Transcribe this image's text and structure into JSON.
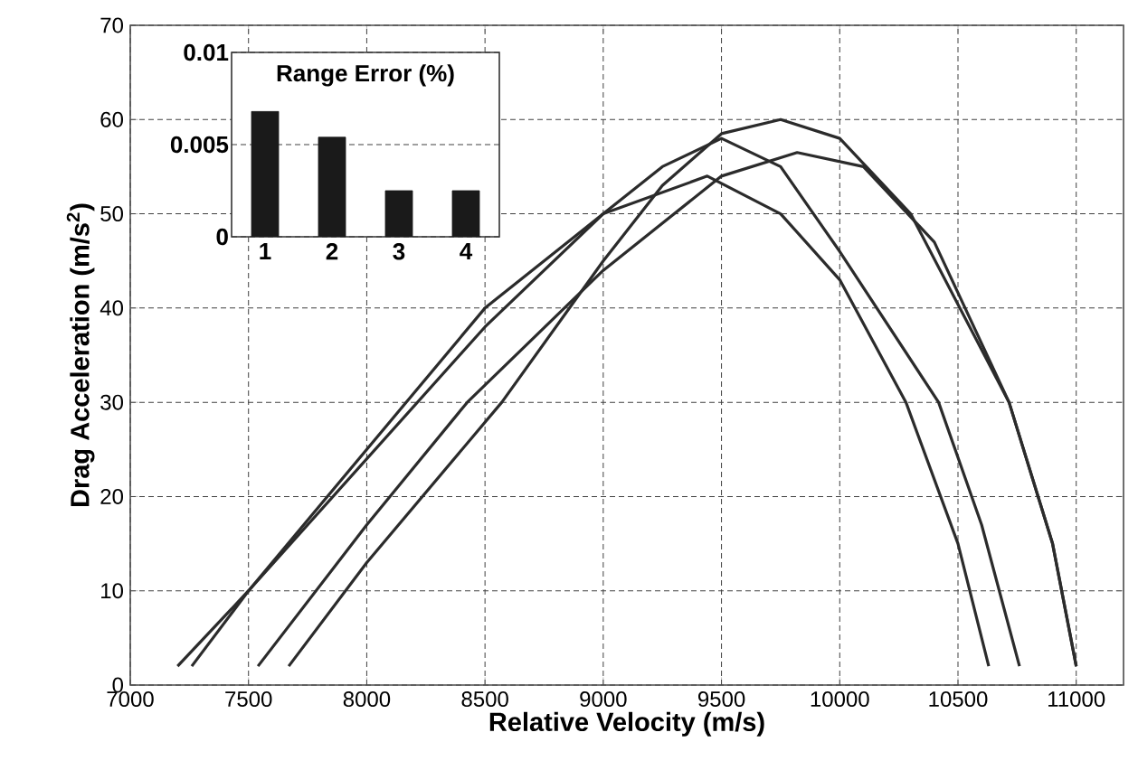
{
  "chart_data": [
    {
      "type": "line",
      "xlabel": "Relative Velocity (m/s)",
      "ylabel": "Drag Acceleration (m/s$^{2}$)",
      "xlim": [
        7000,
        11200
      ],
      "ylim": [
        0,
        70
      ],
      "xticks": [
        7000,
        7500,
        8000,
        8500,
        9000,
        9500,
        10000,
        10500,
        11000
      ],
      "yticks": [
        0,
        10,
        20,
        30,
        40,
        50,
        60,
        70
      ],
      "grid": true,
      "series": [
        {
          "color": "#2b2b2b",
          "x": [
            7200,
            7500,
            8000,
            8500,
            9000,
            9250,
            9500,
            9750,
            10000,
            10418,
            10600,
            10760
          ],
          "values": [
            2,
            10,
            24,
            38,
            50,
            55,
            58,
            55,
            46,
            30,
            17,
            2
          ]
        },
        {
          "color": "#2b2b2b",
          "x": [
            7260,
            7500,
            8000,
            8500,
            9000,
            9440,
            9750,
            10000,
            10280,
            10500,
            10630
          ],
          "values": [
            2,
            10,
            25,
            40,
            50,
            54,
            50,
            43,
            30,
            15,
            2
          ]
        },
        {
          "color": "#2b2b2b",
          "x": [
            7670,
            8000,
            8571,
            9000,
            9250,
            9500,
            9750,
            10000,
            10300,
            10716,
            10900,
            11000
          ],
          "values": [
            2,
            13,
            30,
            45,
            53,
            58.5,
            60,
            58,
            50,
            30,
            15,
            2
          ]
        },
        {
          "color": "#2b2b2b",
          "x": [
            7540,
            8000,
            8425,
            9000,
            9500,
            9820,
            10100,
            10400,
            10716,
            10900,
            11000
          ],
          "values": [
            2,
            17,
            30,
            44,
            54,
            56.5,
            55,
            47,
            30,
            15,
            2
          ]
        }
      ]
    },
    {
      "type": "bar",
      "title": "Range Error (%)",
      "categories": [
        "1",
        "2",
        "3",
        "4"
      ],
      "values": [
        0.0068,
        0.0054,
        0.0025,
        0.0025
      ],
      "color": "#1a1a1a",
      "ylim": [
        0,
        0.01
      ],
      "yticks": [
        0,
        0.005,
        0.01
      ],
      "grid": "y"
    }
  ]
}
